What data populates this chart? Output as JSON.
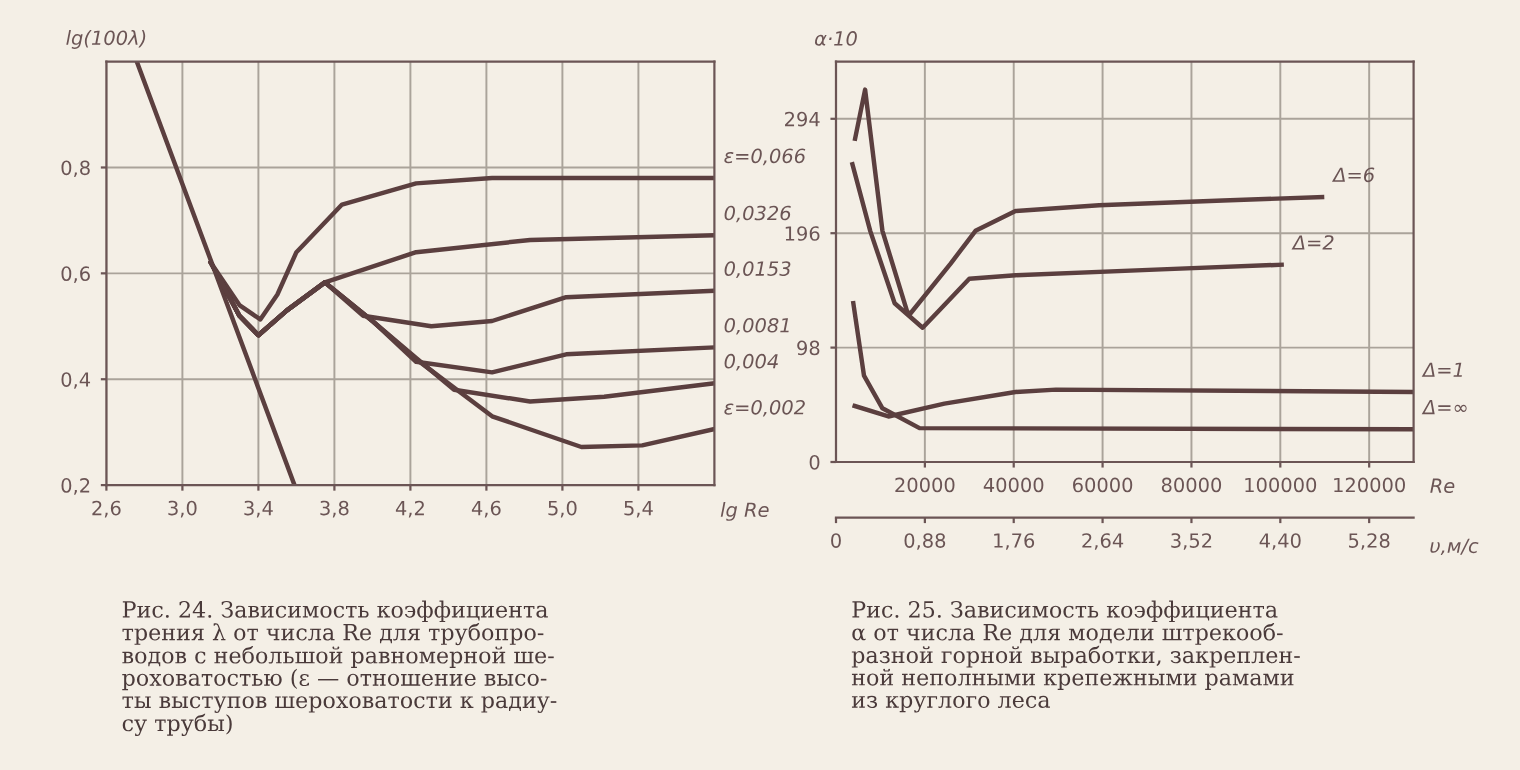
{
  "chart_data": [
    {
      "type": "line",
      "ylabel": "lg(100λ)",
      "xlabel": "lg Re",
      "xlim": [
        2.6,
        5.8
      ],
      "ylim": [
        0.2,
        1.0
      ],
      "xticks": [
        {
          "value": 2.6,
          "label": "2,6"
        },
        {
          "value": 3.0,
          "label": "3,0"
        },
        {
          "value": 3.4,
          "label": "3,4"
        },
        {
          "value": 3.8,
          "label": "3,8"
        },
        {
          "value": 4.2,
          "label": "4,2"
        },
        {
          "value": 4.6,
          "label": "4,6"
        },
        {
          "value": 5.0,
          "label": "5,0"
        },
        {
          "value": 5.4,
          "label": "5,4"
        }
      ],
      "yticks": [
        {
          "value": 0.2,
          "label": "0,2"
        },
        {
          "value": 0.4,
          "label": "0,4"
        },
        {
          "value": 0.6,
          "label": "0,6"
        },
        {
          "value": 0.8,
          "label": "0,8"
        }
      ],
      "grid": true,
      "series": [
        {
          "color": "#5b3f3f",
          "x": [
            2.76,
            3.59
          ],
          "values": [
            1.0,
            0.2
          ]
        },
        {
          "name": "ε=0,066",
          "color": "#5b3f3f",
          "x": [
            3.15,
            3.3,
            3.41,
            3.5,
            3.6,
            3.84,
            4.23,
            4.63,
            5.0,
            5.79
          ],
          "values": [
            0.62,
            0.54,
            0.513,
            0.56,
            0.64,
            0.73,
            0.77,
            0.78,
            0.78,
            0.78
          ]
        },
        {
          "name": "0,0326",
          "color": "#5b3f3f",
          "x": [
            3.15,
            3.3,
            3.4,
            3.55,
            3.75,
            4.23,
            4.83,
            5.79
          ],
          "values": [
            0.62,
            0.52,
            0.483,
            0.53,
            0.583,
            0.64,
            0.663,
            0.672
          ]
        },
        {
          "name": "0,0153",
          "color": "#5b3f3f",
          "x": [
            3.15,
            3.3,
            3.4,
            3.55,
            3.75,
            3.95,
            4.31,
            4.63,
            5.02,
            5.79
          ],
          "values": [
            0.62,
            0.52,
            0.483,
            0.53,
            0.583,
            0.52,
            0.5,
            0.51,
            0.555,
            0.567
          ]
        },
        {
          "name": "0,0081",
          "color": "#5b3f3f",
          "x": [
            3.15,
            3.3,
            3.4,
            3.55,
            3.75,
            4.0,
            4.23,
            4.63,
            5.02,
            5.79
          ],
          "values": [
            0.62,
            0.52,
            0.483,
            0.53,
            0.583,
            0.51,
            0.433,
            0.413,
            0.447,
            0.46
          ]
        },
        {
          "name": "0,004",
          "color": "#5b3f3f",
          "x": [
            3.15,
            3.3,
            3.4,
            3.55,
            3.75,
            4.0,
            4.23,
            4.43,
            4.83,
            5.22,
            5.79
          ],
          "values": [
            0.62,
            0.52,
            0.483,
            0.53,
            0.583,
            0.51,
            0.44,
            0.38,
            0.358,
            0.367,
            0.392
          ]
        },
        {
          "name": "ε=0,002",
          "color": "#5b3f3f",
          "x": [
            3.15,
            3.3,
            3.4,
            3.55,
            3.75,
            4.0,
            4.23,
            4.63,
            5.1,
            5.42,
            5.79
          ],
          "values": [
            0.62,
            0.52,
            0.483,
            0.53,
            0.583,
            0.51,
            0.438,
            0.33,
            0.272,
            0.275,
            0.305
          ]
        }
      ],
      "annotations": [
        "Рис. 24. Зависимость коэффициента\nтрения λ от числа Re для трубопро-\nводов с небольшой равномерной ше-\nроховатостью (ε — отношение высо-\nты выступов шероховатости к радиу-\nсу трубы)"
      ]
    },
    {
      "type": "line",
      "ylabel": "α·10",
      "xlabel": "Re",
      "x2label": "υ,м/с",
      "xlim": [
        0,
        130000
      ],
      "ylim": [
        0,
        343
      ],
      "xticks": [
        20000,
        40000,
        60000,
        80000,
        100000,
        120000
      ],
      "yticks": [
        0,
        98,
        196,
        294
      ],
      "x2lim": [
        0,
        5.72
      ],
      "x2ticks": [
        0,
        {
          "value": 0.88,
          "label": "0,88"
        },
        {
          "value": 1.76,
          "label": "1,76"
        },
        {
          "value": 2.64,
          "label": "2,64"
        },
        {
          "value": 3.52,
          "label": "3,52"
        },
        {
          "value": 4.4,
          "label": "4,40"
        },
        {
          "value": 5.28,
          "label": "5,28"
        }
      ],
      "grid": true,
      "series": [
        {
          "name": "Δ=6",
          "color": "#5b3f3f",
          "x": [
            4300,
            6550,
            10450,
            16000,
            16700,
            25800,
            31400,
            40400,
            59200,
            87100,
            109400
          ],
          "values": [
            277,
            319,
            198,
            129,
            127,
            170,
            198,
            215,
            220,
            224,
            227
          ]
        },
        {
          "name": "Δ=2",
          "color": "#5b3f3f",
          "x": [
            3700,
            7700,
            13200,
            19500,
            23000,
            30000,
            40400,
            73200,
            100300
          ],
          "values": [
            255,
            198,
            136,
            115,
            129,
            157,
            160,
            165,
            169
          ]
        },
        {
          "name": "Δ=1",
          "color": "#5b3f3f",
          "x": [
            4200,
            11800,
            24400,
            40400,
            49500,
            129600
          ],
          "values": [
            48,
            39,
            50,
            60,
            62,
            60
          ]
        },
        {
          "name": "Δ=∞",
          "color": "#5b3f3f",
          "x": [
            3900,
            6300,
            10450,
            18800,
            129600
          ],
          "values": [
            136,
            74,
            46,
            29,
            28
          ]
        }
      ],
      "annotations": [
        "Рис. 25. Зависимость коэффициента\nα от числа Re для модели штрекооб-\nразной горной выработки, закреплен-\nной неполными крепежными рамами\nиз круглого леса"
      ]
    }
  ]
}
